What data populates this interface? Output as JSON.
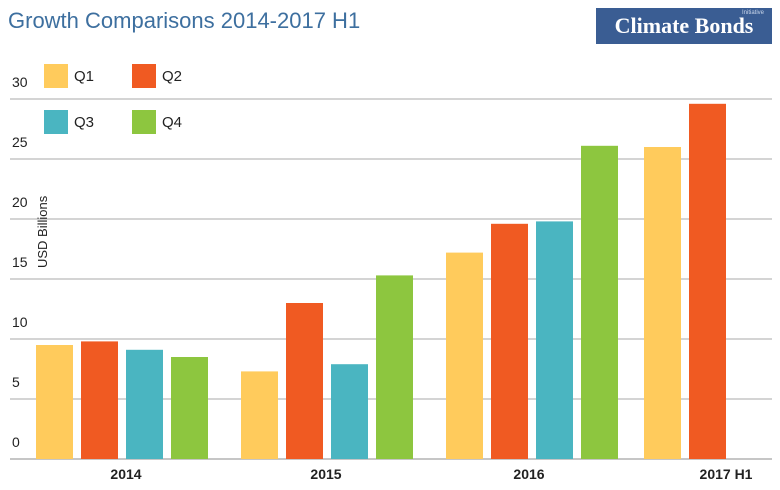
{
  "header": {
    "title": "Growth Comparisons 2014-2017 H1",
    "logo_text": "Climate Bonds",
    "logo_subtext": "Initiative"
  },
  "colors": {
    "Q1": "#ffcb5c",
    "Q2": "#f05a22",
    "Q3": "#4ab5c1",
    "Q4": "#8dc63f",
    "grid": "#c6c6c6",
    "title": "#3d6f9f",
    "logo_bg": "#3a5d93"
  },
  "chart_data": {
    "type": "bar",
    "title": "Growth Comparisons 2014-2017 H1",
    "xlabel": "",
    "ylabel": "USD Billions",
    "ylim": [
      0,
      30
    ],
    "yticks": [
      0,
      5,
      10,
      15,
      20,
      25,
      30
    ],
    "grid": true,
    "legend_position": "top-left",
    "categories": [
      "2014",
      "2015",
      "2016",
      "2017 H1"
    ],
    "series": [
      {
        "name": "Q1",
        "values": [
          9.5,
          7.3,
          17.2,
          26.0
        ]
      },
      {
        "name": "Q2",
        "values": [
          9.8,
          13.0,
          19.6,
          29.6
        ]
      },
      {
        "name": "Q3",
        "values": [
          9.1,
          7.9,
          19.8,
          null
        ]
      },
      {
        "name": "Q4",
        "values": [
          8.5,
          15.3,
          26.1,
          null
        ]
      }
    ]
  }
}
